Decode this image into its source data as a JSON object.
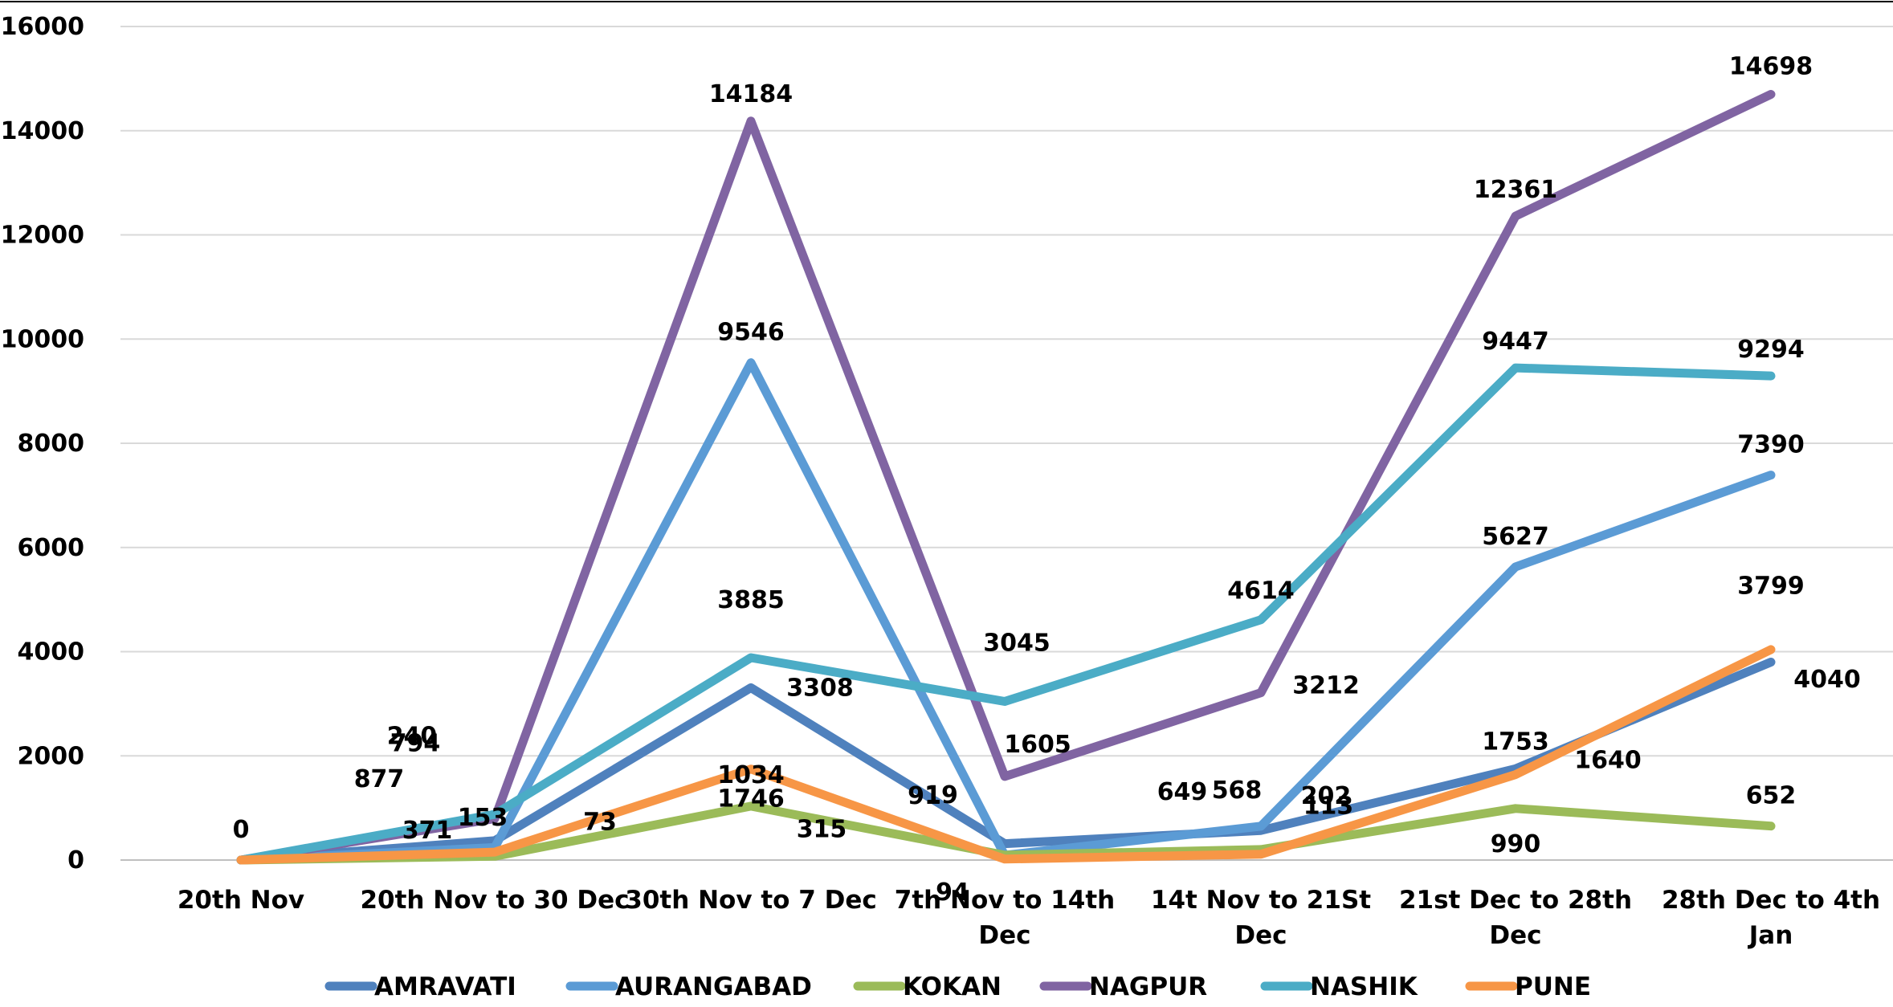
{
  "chart_data": {
    "type": "line",
    "title": "",
    "xlabel": "",
    "ylabel": "",
    "ylim": [
      0,
      16000
    ],
    "yticks": [
      0,
      2000,
      4000,
      6000,
      8000,
      10000,
      12000,
      14000,
      16000
    ],
    "grid": true,
    "legend_position": "bottom",
    "categories": [
      "20th Nov",
      "20th Nov to 30 Dec",
      "30th Nov to 7 Dec",
      "7th Nov to 14th Dec",
      "14t Nov to 21St Dec",
      "21st Dec to 28th Dec",
      "28th Dec to 4th Jan"
    ],
    "series": [
      {
        "name": "AMRAVATI",
        "color": "#4f81bd",
        "values": [
          0,
          371,
          3308,
          315,
          568,
          1753,
          3799
        ]
      },
      {
        "name": "AURANGABAD",
        "color": "#5b9bd5",
        "values": [
          0,
          240,
          9546,
          91,
          649,
          5627,
          7390
        ]
      },
      {
        "name": "KOKAN",
        "color": "#9bbb59",
        "values": [
          0,
          73,
          1034,
          94,
          202,
          990,
          652
        ]
      },
      {
        "name": "NAGPUR",
        "color": "#8064a2",
        "values": [
          0,
          794,
          14184,
          1605,
          3212,
          12361,
          14698
        ]
      },
      {
        "name": "NASHIK",
        "color": "#4bacc6",
        "values": [
          0,
          877,
          3885,
          3045,
          4614,
          9447,
          9294
        ]
      },
      {
        "name": "PUNE",
        "color": "#f79646",
        "values": [
          0,
          153,
          1746,
          19,
          113,
          1640,
          4040
        ]
      }
    ],
    "extra_labels": [
      "0"
    ]
  }
}
